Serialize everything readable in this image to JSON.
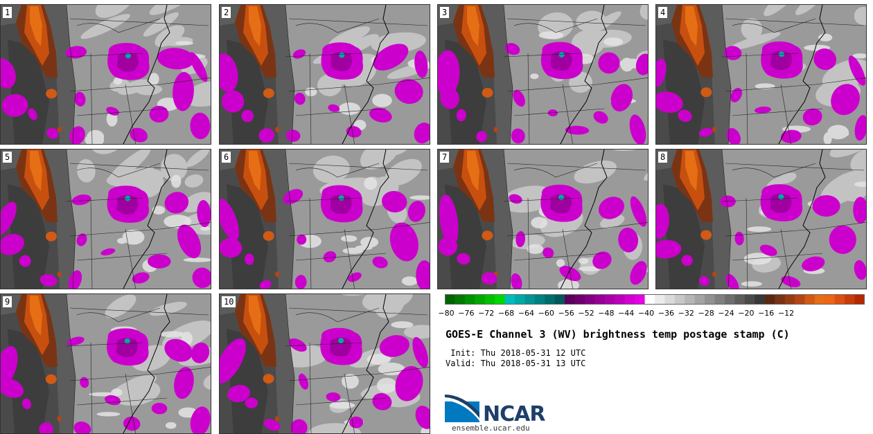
{
  "panels": [
    "1",
    "2",
    "3",
    "4",
    "5",
    "6",
    "7",
    "8",
    "9",
    "10"
  ],
  "colorbar": {
    "ticks": [
      "−80",
      "−76",
      "−72",
      "−68",
      "−64",
      "−60",
      "−56",
      "−52",
      "−48",
      "−44",
      "−40",
      "−36",
      "−32",
      "−28",
      "−24",
      "−20",
      "−16",
      "−12"
    ],
    "colors": [
      "#006400",
      "#007a00",
      "#009100",
      "#00a800",
      "#00c000",
      "#00d800",
      "#00bcbc",
      "#00a8a8",
      "#009494",
      "#008080",
      "#006c6c",
      "#005858",
      "#5a005a",
      "#6e006e",
      "#820082",
      "#960096",
      "#aa00aa",
      "#be00be",
      "#d200d2",
      "#e600e6",
      "#ffffff",
      "#ececec",
      "#dadada",
      "#c8c8c8",
      "#b6b6b6",
      "#a4a4a4",
      "#929292",
      "#808080",
      "#6e6e6e",
      "#5c5c5c",
      "#4a4a4a",
      "#383838",
      "#5a2812",
      "#783214",
      "#963c14",
      "#b44614",
      "#d25a14",
      "#e66e14",
      "#f06414",
      "#dc5014",
      "#c83c0a",
      "#b42800"
    ]
  },
  "title": "GOES-E Channel 3 (WV) brightness temp postage stamp (C)",
  "init_text": " Init: Thu 2018-05-31 12 UTC",
  "valid_text": "Valid: Thu 2018-05-31 13 UTC",
  "logo_text": "NCAR",
  "website": "ensemble.ucar.edu"
}
